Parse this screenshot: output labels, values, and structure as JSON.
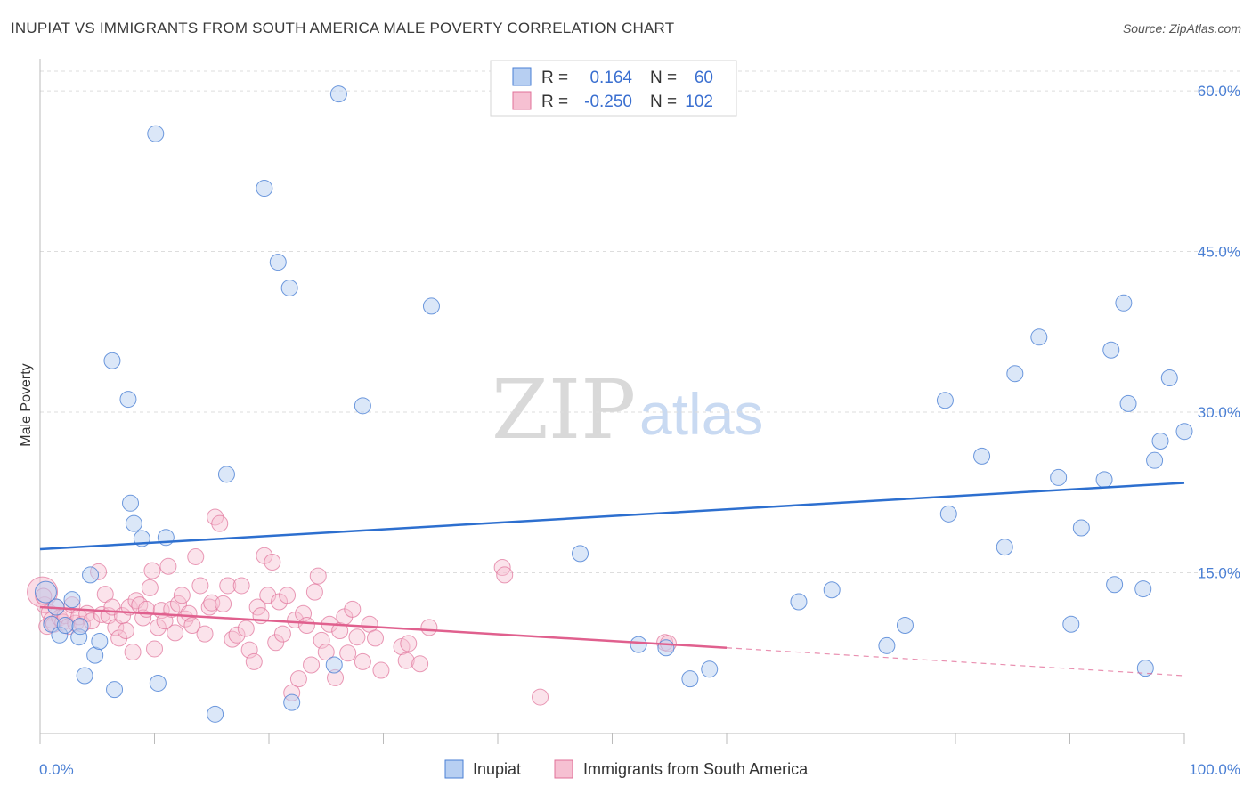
{
  "title": "INUPIAT VS IMMIGRANTS FROM SOUTH AMERICA MALE POVERTY CORRELATION CHART",
  "source": "Source: ZipAtlas.com",
  "colors": {
    "blue": "#4a7fd4",
    "blue_fill": "#b7cff2",
    "blue_line": "#2d6fcf",
    "pink": "#e07098",
    "pink_fill": "#f6c0d2",
    "pink_line": "#e0608e",
    "grid": "#dddddd",
    "axis_text": "#4a7fd4"
  },
  "legend": {
    "rows": [
      {
        "r_label": "R =",
        "r_value": "0.164",
        "n_label": "N =",
        "n_value": "60"
      },
      {
        "r_label": "R =",
        "r_value": "-0.250",
        "n_label": "N =",
        "n_value": "102"
      }
    ]
  },
  "watermark": {
    "part1": "ZIP",
    "part2": "atlas"
  },
  "chart_data": {
    "type": "scatter",
    "title": "INUPIAT VS IMMIGRANTS FROM SOUTH AMERICA MALE POVERTY CORRELATION CHART",
    "xlabel": "",
    "ylabel": "Male Poverty",
    "xlim": [
      0,
      100
    ],
    "ylim": [
      0,
      62
    ],
    "x_tick_labels": [
      "0.0%",
      "100.0%"
    ],
    "y_ticks": [
      15,
      30,
      45,
      60
    ],
    "y_tick_labels": [
      "15.0%",
      "30.0%",
      "45.0%",
      "60.0%"
    ],
    "grid": "horizontal dashed",
    "legend_position": "top-center",
    "series": [
      {
        "name": "Inupiat",
        "color": "#4a7fd4",
        "trend": {
          "x": [
            0,
            100
          ],
          "y": [
            17.2,
            23.4
          ]
        },
        "points": [
          [
            0.5,
            13.2
          ],
          [
            1.0,
            10.2
          ],
          [
            1.4,
            11.8
          ],
          [
            1.7,
            9.2
          ],
          [
            2.2,
            10.1
          ],
          [
            2.8,
            12.5
          ],
          [
            3.4,
            9.0
          ],
          [
            3.9,
            5.4
          ],
          [
            4.4,
            14.8
          ],
          [
            4.8,
            7.3
          ],
          [
            5.2,
            8.6
          ],
          [
            6.3,
            34.8
          ],
          [
            6.5,
            4.1
          ],
          [
            7.7,
            31.2
          ],
          [
            7.9,
            21.5
          ],
          [
            8.2,
            19.6
          ],
          [
            8.9,
            18.2
          ],
          [
            10.1,
            56.0
          ],
          [
            10.3,
            4.7
          ],
          [
            11.0,
            18.3
          ],
          [
            15.3,
            1.8
          ],
          [
            16.3,
            24.2
          ],
          [
            19.6,
            50.9
          ],
          [
            20.8,
            44.0
          ],
          [
            21.8,
            41.6
          ],
          [
            22.0,
            2.9
          ],
          [
            25.7,
            6.4
          ],
          [
            26.1,
            59.7
          ],
          [
            28.2,
            30.6
          ],
          [
            34.2,
            39.9
          ],
          [
            47.2,
            16.8
          ],
          [
            52.3,
            8.3
          ],
          [
            54.7,
            8.0
          ],
          [
            56.8,
            5.1
          ],
          [
            58.5,
            6.0
          ],
          [
            66.3,
            12.3
          ],
          [
            69.2,
            13.4
          ],
          [
            74.0,
            8.2
          ],
          [
            75.6,
            10.1
          ],
          [
            79.1,
            31.1
          ],
          [
            79.4,
            20.5
          ],
          [
            82.3,
            25.9
          ],
          [
            84.3,
            17.4
          ],
          [
            85.2,
            33.6
          ],
          [
            87.3,
            37.0
          ],
          [
            89.0,
            23.9
          ],
          [
            90.1,
            10.2
          ],
          [
            91.0,
            19.2
          ],
          [
            93.0,
            23.7
          ],
          [
            93.6,
            35.8
          ],
          [
            93.9,
            13.9
          ],
          [
            94.7,
            40.2
          ],
          [
            95.1,
            30.8
          ],
          [
            96.4,
            13.5
          ],
          [
            96.6,
            6.1
          ],
          [
            97.4,
            25.5
          ],
          [
            97.9,
            27.3
          ],
          [
            98.7,
            33.2
          ],
          [
            100.0,
            28.2
          ],
          [
            3.5,
            10.0
          ]
        ]
      },
      {
        "name": "Immigrants from South America",
        "color": "#e07098",
        "trend": {
          "x": [
            0,
            60
          ],
          "y": [
            11.8,
            8.0
          ]
        },
        "trend_dashed": {
          "x": [
            60,
            100
          ],
          "y": [
            8.0,
            5.4
          ]
        },
        "points": [
          [
            0.2,
            13.2
          ],
          [
            0.4,
            12.0
          ],
          [
            0.6,
            10.0
          ],
          [
            0.8,
            11.3
          ],
          [
            1.0,
            10.6
          ],
          [
            1.2,
            10.2
          ],
          [
            1.4,
            11.8
          ],
          [
            1.7,
            10.8
          ],
          [
            2.0,
            10.4
          ],
          [
            2.2,
            11.0
          ],
          [
            2.5,
            10.0
          ],
          [
            2.8,
            12.0
          ],
          [
            3.1,
            10.3
          ],
          [
            3.4,
            10.9
          ],
          [
            3.7,
            10.2
          ],
          [
            4.1,
            11.2
          ],
          [
            4.5,
            10.5
          ],
          [
            5.1,
            15.1
          ],
          [
            5.4,
            11.1
          ],
          [
            5.7,
            13.0
          ],
          [
            6.0,
            11.0
          ],
          [
            6.3,
            11.8
          ],
          [
            6.6,
            9.9
          ],
          [
            6.9,
            8.9
          ],
          [
            7.2,
            11.0
          ],
          [
            7.5,
            9.6
          ],
          [
            7.8,
            11.8
          ],
          [
            8.1,
            7.6
          ],
          [
            8.4,
            12.4
          ],
          [
            8.7,
            12.0
          ],
          [
            9.0,
            10.8
          ],
          [
            9.3,
            11.6
          ],
          [
            9.6,
            13.6
          ],
          [
            9.8,
            15.2
          ],
          [
            10.0,
            7.9
          ],
          [
            10.3,
            9.9
          ],
          [
            10.6,
            11.5
          ],
          [
            10.9,
            10.5
          ],
          [
            11.2,
            15.6
          ],
          [
            11.5,
            11.6
          ],
          [
            11.8,
            9.4
          ],
          [
            12.1,
            12.1
          ],
          [
            12.4,
            12.9
          ],
          [
            12.7,
            10.7
          ],
          [
            13.0,
            11.2
          ],
          [
            13.3,
            10.1
          ],
          [
            13.6,
            16.5
          ],
          [
            14.0,
            13.8
          ],
          [
            14.4,
            9.3
          ],
          [
            14.8,
            11.8
          ],
          [
            15.0,
            12.2
          ],
          [
            15.3,
            20.2
          ],
          [
            15.7,
            19.6
          ],
          [
            16.0,
            12.1
          ],
          [
            16.4,
            13.8
          ],
          [
            16.8,
            8.8
          ],
          [
            17.2,
            9.2
          ],
          [
            17.6,
            13.8
          ],
          [
            18.0,
            9.8
          ],
          [
            18.3,
            7.8
          ],
          [
            18.7,
            6.7
          ],
          [
            19.0,
            11.8
          ],
          [
            19.3,
            11.0
          ],
          [
            19.6,
            16.6
          ],
          [
            19.9,
            12.9
          ],
          [
            20.3,
            16.0
          ],
          [
            20.6,
            8.5
          ],
          [
            20.9,
            12.3
          ],
          [
            21.2,
            9.3
          ],
          [
            21.6,
            12.9
          ],
          [
            22.0,
            3.8
          ],
          [
            22.3,
            10.6
          ],
          [
            22.6,
            5.1
          ],
          [
            23.0,
            11.2
          ],
          [
            23.3,
            10.1
          ],
          [
            23.7,
            6.4
          ],
          [
            24.0,
            13.2
          ],
          [
            24.3,
            14.7
          ],
          [
            24.6,
            8.7
          ],
          [
            25.0,
            7.6
          ],
          [
            25.3,
            10.2
          ],
          [
            25.8,
            5.2
          ],
          [
            26.2,
            9.6
          ],
          [
            26.6,
            10.9
          ],
          [
            26.9,
            7.5
          ],
          [
            27.3,
            11.6
          ],
          [
            27.7,
            9.0
          ],
          [
            28.2,
            6.7
          ],
          [
            28.8,
            10.2
          ],
          [
            29.3,
            8.9
          ],
          [
            29.8,
            5.9
          ],
          [
            31.6,
            8.1
          ],
          [
            32.0,
            6.8
          ],
          [
            32.2,
            8.4
          ],
          [
            33.2,
            6.5
          ],
          [
            34.0,
            9.9
          ],
          [
            40.4,
            15.5
          ],
          [
            40.6,
            14.8
          ],
          [
            43.7,
            3.4
          ],
          [
            54.6,
            8.5
          ],
          [
            54.9,
            8.4
          ],
          [
            0.3,
            12.8
          ]
        ]
      }
    ]
  },
  "bottom_legend": [
    {
      "label": "Inupiat"
    },
    {
      "label": "Immigrants from South America"
    }
  ]
}
